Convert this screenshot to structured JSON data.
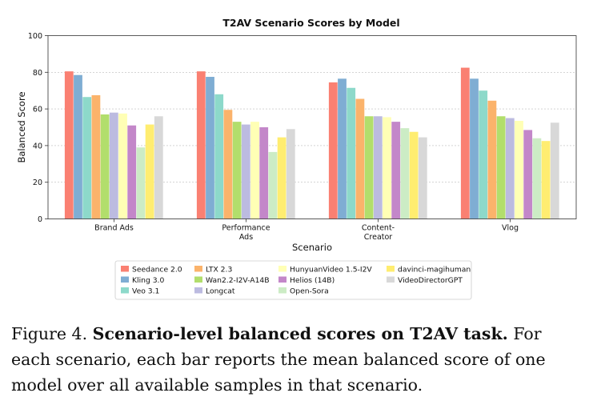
{
  "chart_data": {
    "type": "bar",
    "title": "T2AV Scenario Scores by Model",
    "xlabel": "Scenario",
    "ylabel": "Balanced Score",
    "ylim": [
      0,
      100
    ],
    "yticks": [
      "0",
      "20",
      "40",
      "60",
      "80",
      "100"
    ],
    "grid": "horizontal dotted",
    "legend_position": "bottom",
    "categories": [
      [
        "Brand Ads"
      ],
      [
        "Performance",
        "Ads"
      ],
      [
        "Content-",
        "Creator"
      ],
      [
        "Vlog"
      ]
    ],
    "series": [
      {
        "name": "Seedance 2.0",
        "color": "#fa8072",
        "values": [
          80.5,
          80.5,
          74.5,
          82.5
        ]
      },
      {
        "name": "Kling 3.0",
        "color": "#7fadd3",
        "values": [
          78.5,
          77.5,
          76.5,
          76.5
        ]
      },
      {
        "name": "Veo 3.1",
        "color": "#8dd9ca",
        "values": [
          66.5,
          68.0,
          71.5,
          70.0
        ]
      },
      {
        "name": "LTX 2.3",
        "color": "#fbb36b",
        "values": [
          67.5,
          59.5,
          65.5,
          64.5
        ]
      },
      {
        "name": "Wan2.2-I2V-A14B",
        "color": "#b2de6c",
        "values": [
          57.0,
          53.0,
          56.0,
          56.0
        ]
      },
      {
        "name": "Longcat",
        "color": "#bcbbe0",
        "values": [
          58.0,
          51.5,
          56.0,
          55.0
        ]
      },
      {
        "name": "HunyuanVideo 1.5-I2V",
        "color": "#ffffb5",
        "values": [
          57.5,
          53.0,
          55.5,
          53.5
        ]
      },
      {
        "name": "Helios (14B)",
        "color": "#c387c9",
        "values": [
          51.0,
          50.0,
          53.0,
          48.5
        ]
      },
      {
        "name": "Open-Sora",
        "color": "#ccecc5",
        "values": [
          39.0,
          36.5,
          49.5,
          44.0
        ]
      },
      {
        "name": "davinci-magihuman",
        "color": "#ffed70",
        "values": [
          51.5,
          44.5,
          47.5,
          42.5
        ]
      },
      {
        "name": "VideoDirectorGPT",
        "color": "#d8d8d8",
        "values": [
          56.0,
          49.0,
          44.5,
          52.5
        ]
      }
    ]
  },
  "caption": {
    "label": "Figure 4.",
    "bold": "Scenario-level balanced scores on T2AV task.",
    "text": "For each scenario, each bar reports the mean balanced score of one model over all available samples in that scenario."
  }
}
